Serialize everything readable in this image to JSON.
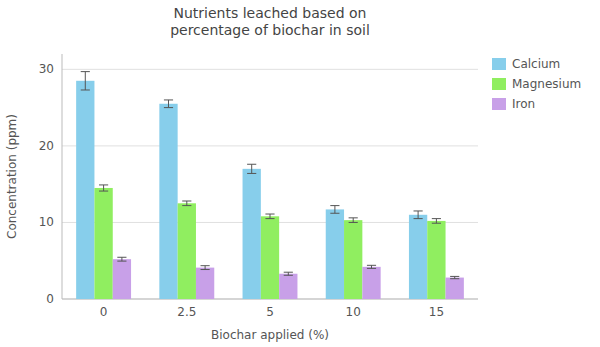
{
  "chart_data": {
    "type": "bar",
    "title": "Nutrients leached based on\npercentage of biochar in soil",
    "xlabel": "Biochar applied (%)",
    "ylabel": "Concentration (ppm)",
    "categories": [
      "0",
      "2.5",
      "5",
      "10",
      "15"
    ],
    "series": [
      {
        "name": "Calcium",
        "color": "#87CEEB",
        "values": [
          28.5,
          25.5,
          17.0,
          11.7,
          11.0
        ],
        "errors": [
          1.2,
          0.5,
          0.6,
          0.5,
          0.5
        ]
      },
      {
        "name": "Magnesium",
        "color": "#90EE60",
        "values": [
          14.5,
          12.5,
          10.8,
          10.3,
          10.2
        ],
        "errors": [
          0.4,
          0.3,
          0.3,
          0.3,
          0.3
        ]
      },
      {
        "name": "Iron",
        "color": "#C8A0E8",
        "values": [
          5.2,
          4.1,
          3.3,
          4.2,
          2.8
        ],
        "errors": [
          0.25,
          0.25,
          0.2,
          0.2,
          0.15
        ]
      }
    ],
    "ylim": [
      0,
      32
    ],
    "yticks": [
      0,
      10,
      20,
      30
    ],
    "grid": true,
    "legend": "right"
  }
}
